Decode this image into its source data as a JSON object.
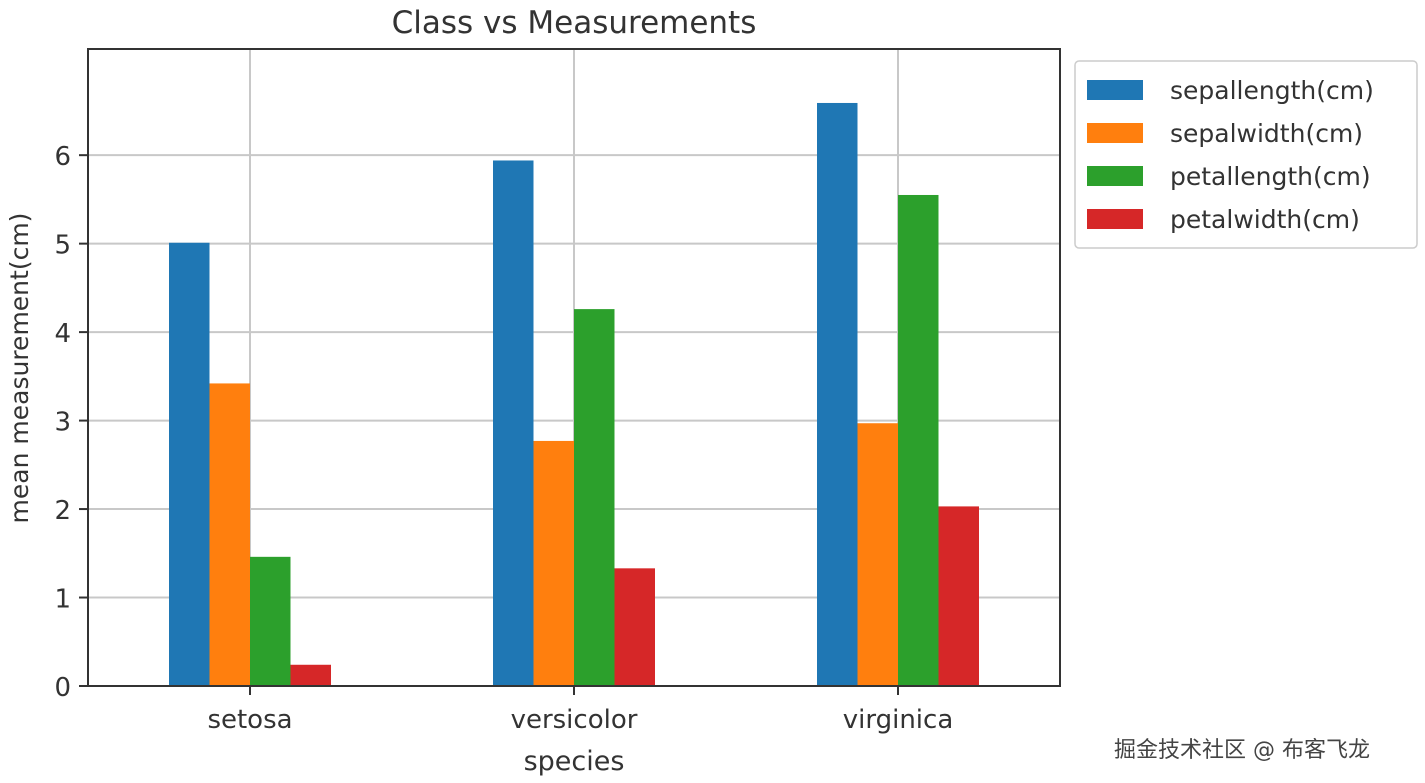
{
  "chart_data": {
    "type": "bar",
    "title": "Class vs Measurements",
    "xlabel": "species",
    "ylabel": "mean measurement(cm)",
    "categories": [
      "setosa",
      "versicolor",
      "virginica"
    ],
    "series": [
      {
        "name": "sepallength(cm)",
        "color": "#1f77b4",
        "values": [
          5.01,
          5.94,
          6.59
        ]
      },
      {
        "name": "sepalwidth(cm)",
        "color": "#ff7f0e",
        "values": [
          3.42,
          2.77,
          2.97
        ]
      },
      {
        "name": "petallength(cm)",
        "color": "#2ca02c",
        "values": [
          1.46,
          4.26,
          5.55
        ]
      },
      {
        "name": "petalwidth(cm)",
        "color": "#d62728",
        "values": [
          0.24,
          1.33,
          2.03
        ]
      }
    ],
    "ylim": [
      0,
      7.2
    ],
    "yticks": [
      0,
      1,
      2,
      3,
      4,
      5,
      6
    ],
    "grid": true,
    "legend": "outside-top-right"
  },
  "watermark": "掘金技术社区 @ 布客飞龙"
}
